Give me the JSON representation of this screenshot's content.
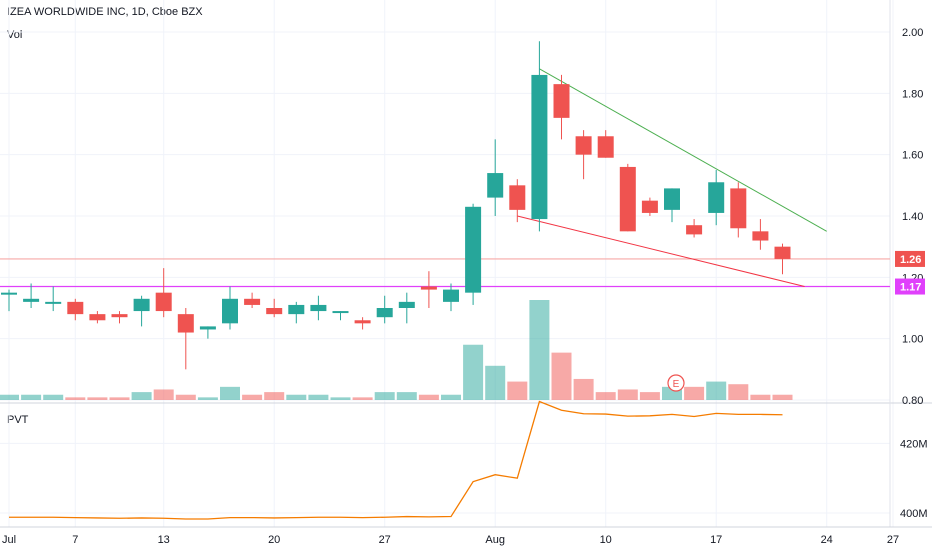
{
  "chart_data": [
    {
      "type": "candlestick",
      "title": "IZEA WORLDWIDE INC, 1D, Cboe BZX",
      "volume_label": "Vol",
      "ylim": [
        0.8,
        2.0
      ],
      "y_ticks": [
        "2.00",
        "1.80",
        "1.60",
        "1.40",
        "1.20",
        "1.00",
        "0.80"
      ],
      "x_ticks": [
        {
          "label": "Jul",
          "index": 0
        },
        {
          "label": "7",
          "index": 3
        },
        {
          "label": "13",
          "index": 7
        },
        {
          "label": "20",
          "index": 12
        },
        {
          "label": "27",
          "index": 17
        },
        {
          "label": "Aug",
          "index": 22
        },
        {
          "label": "10",
          "index": 27
        },
        {
          "label": "17",
          "index": 32
        },
        {
          "label": "24",
          "index": 37
        },
        {
          "label": "27",
          "index": 40
        }
      ],
      "candles": [
        {
          "o": 1.15,
          "h": 1.16,
          "l": 1.09,
          "c": 1.15
        },
        {
          "o": 1.12,
          "h": 1.18,
          "l": 1.1,
          "c": 1.13
        },
        {
          "o": 1.12,
          "h": 1.17,
          "l": 1.09,
          "c": 1.12
        },
        {
          "o": 1.12,
          "h": 1.13,
          "l": 1.06,
          "c": 1.08
        },
        {
          "o": 1.08,
          "h": 1.09,
          "l": 1.05,
          "c": 1.06
        },
        {
          "o": 1.08,
          "h": 1.09,
          "l": 1.05,
          "c": 1.07
        },
        {
          "o": 1.09,
          "h": 1.14,
          "l": 1.04,
          "c": 1.13
        },
        {
          "o": 1.15,
          "h": 1.23,
          "l": 1.07,
          "c": 1.09
        },
        {
          "o": 1.08,
          "h": 1.1,
          "l": 0.9,
          "c": 1.02
        },
        {
          "o": 1.03,
          "h": 1.04,
          "l": 1.0,
          "c": 1.04
        },
        {
          "o": 1.05,
          "h": 1.17,
          "l": 1.03,
          "c": 1.13
        },
        {
          "o": 1.13,
          "h": 1.15,
          "l": 1.1,
          "c": 1.11
        },
        {
          "o": 1.1,
          "h": 1.13,
          "l": 1.07,
          "c": 1.08
        },
        {
          "o": 1.08,
          "h": 1.12,
          "l": 1.05,
          "c": 1.11
        },
        {
          "o": 1.09,
          "h": 1.14,
          "l": 1.06,
          "c": 1.11
        },
        {
          "o": 1.09,
          "h": 1.09,
          "l": 1.06,
          "c": 1.09
        },
        {
          "o": 1.06,
          "h": 1.07,
          "l": 1.03,
          "c": 1.05
        },
        {
          "o": 1.07,
          "h": 1.14,
          "l": 1.05,
          "c": 1.1
        },
        {
          "o": 1.1,
          "h": 1.15,
          "l": 1.05,
          "c": 1.12
        },
        {
          "o": 1.17,
          "h": 1.22,
          "l": 1.1,
          "c": 1.16
        },
        {
          "o": 1.12,
          "h": 1.18,
          "l": 1.09,
          "c": 1.16
        },
        {
          "o": 1.15,
          "h": 1.44,
          "l": 1.11,
          "c": 1.43
        },
        {
          "o": 1.46,
          "h": 1.65,
          "l": 1.4,
          "c": 1.54
        },
        {
          "o": 1.5,
          "h": 1.52,
          "l": 1.38,
          "c": 1.42
        },
        {
          "o": 1.39,
          "h": 1.97,
          "l": 1.35,
          "c": 1.86
        },
        {
          "o": 1.83,
          "h": 1.86,
          "l": 1.65,
          "c": 1.72
        },
        {
          "o": 1.66,
          "h": 1.68,
          "l": 1.52,
          "c": 1.6
        },
        {
          "o": 1.66,
          "h": 1.68,
          "l": 1.59,
          "c": 1.59
        },
        {
          "o": 1.56,
          "h": 1.57,
          "l": 1.35,
          "c": 1.35
        },
        {
          "o": 1.45,
          "h": 1.46,
          "l": 1.4,
          "c": 1.41
        },
        {
          "o": 1.42,
          "h": 1.49,
          "l": 1.38,
          "c": 1.49
        },
        {
          "o": 1.37,
          "h": 1.39,
          "l": 1.33,
          "c": 1.34
        },
        {
          "o": 1.41,
          "h": 1.55,
          "l": 1.37,
          "c": 1.51
        },
        {
          "o": 1.49,
          "h": 1.51,
          "l": 1.33,
          "c": 1.36
        },
        {
          "o": 1.35,
          "h": 1.39,
          "l": 1.29,
          "c": 1.32
        },
        {
          "o": 1.3,
          "h": 1.31,
          "l": 1.21,
          "c": 1.26
        }
      ],
      "volume": [
        {
          "v": 2,
          "dir": "up"
        },
        {
          "v": 2,
          "dir": "up"
        },
        {
          "v": 2,
          "dir": "up"
        },
        {
          "v": 1,
          "dir": "down"
        },
        {
          "v": 1,
          "dir": "down"
        },
        {
          "v": 1,
          "dir": "down"
        },
        {
          "v": 3,
          "dir": "up"
        },
        {
          "v": 4,
          "dir": "down"
        },
        {
          "v": 2,
          "dir": "down"
        },
        {
          "v": 1,
          "dir": "up"
        },
        {
          "v": 5,
          "dir": "up"
        },
        {
          "v": 2,
          "dir": "down"
        },
        {
          "v": 3,
          "dir": "down"
        },
        {
          "v": 2,
          "dir": "up"
        },
        {
          "v": 2,
          "dir": "up"
        },
        {
          "v": 1,
          "dir": "up"
        },
        {
          "v": 1,
          "dir": "down"
        },
        {
          "v": 3,
          "dir": "up"
        },
        {
          "v": 3,
          "dir": "up"
        },
        {
          "v": 2,
          "dir": "down"
        },
        {
          "v": 2,
          "dir": "up"
        },
        {
          "v": 21,
          "dir": "up"
        },
        {
          "v": 13,
          "dir": "up"
        },
        {
          "v": 7,
          "dir": "down"
        },
        {
          "v": 38,
          "dir": "up"
        },
        {
          "v": 18,
          "dir": "down"
        },
        {
          "v": 8,
          "dir": "down"
        },
        {
          "v": 3,
          "dir": "down"
        },
        {
          "v": 4,
          "dir": "down"
        },
        {
          "v": 3,
          "dir": "down"
        },
        {
          "v": 5,
          "dir": "up"
        },
        {
          "v": 5,
          "dir": "down"
        },
        {
          "v": 7,
          "dir": "up"
        },
        {
          "v": 6,
          "dir": "down"
        },
        {
          "v": 2,
          "dir": "down"
        },
        {
          "v": 2,
          "dir": "down"
        }
      ],
      "price_lines": [
        {
          "price": 1.26,
          "label": "1.26",
          "color": "#f7a9a7",
          "label_color": "#ef5350",
          "text_color": "#ffffff"
        },
        {
          "price": 1.17,
          "label": "1.17",
          "color": "#e040fb",
          "label_color": "#e040fb",
          "text_color": "#ffffff"
        }
      ],
      "trend_lines": [
        {
          "from": {
            "index": 24,
            "price": 1.88
          },
          "to": {
            "index": 37,
            "price": 1.35
          },
          "color": "#4caf50"
        },
        {
          "from": {
            "index": 23,
            "price": 1.4
          },
          "to": {
            "index": 36,
            "price": 1.17
          },
          "color": "#f23645"
        }
      ],
      "earnings_marker": {
        "index": 30,
        "label": "E"
      }
    },
    {
      "type": "line",
      "title": "PVT",
      "ylim": [
        396,
        431
      ],
      "y_ticks": [
        "420M",
        "400M"
      ],
      "x_index": [
        0,
        1,
        2,
        3,
        4,
        5,
        6,
        7,
        8,
        9,
        10,
        11,
        12,
        13,
        14,
        15,
        16,
        17,
        18,
        19,
        20,
        21,
        22,
        23,
        24,
        25,
        26,
        27,
        28,
        29,
        30,
        31,
        32,
        33,
        34,
        35
      ],
      "values": [
        398.8,
        398.8,
        398.8,
        398.7,
        398.6,
        398.5,
        398.6,
        398.5,
        398.3,
        398.3,
        398.7,
        398.7,
        398.6,
        398.7,
        398.8,
        398.8,
        398.7,
        398.8,
        399.0,
        398.9,
        399.0,
        409.0,
        411.0,
        410.0,
        432.0,
        429.5,
        428.5,
        428.4,
        427.8,
        427.9,
        428.3,
        427.7,
        428.6,
        428.3,
        428.3,
        428.2
      ],
      "color": "#f57c00"
    }
  ]
}
